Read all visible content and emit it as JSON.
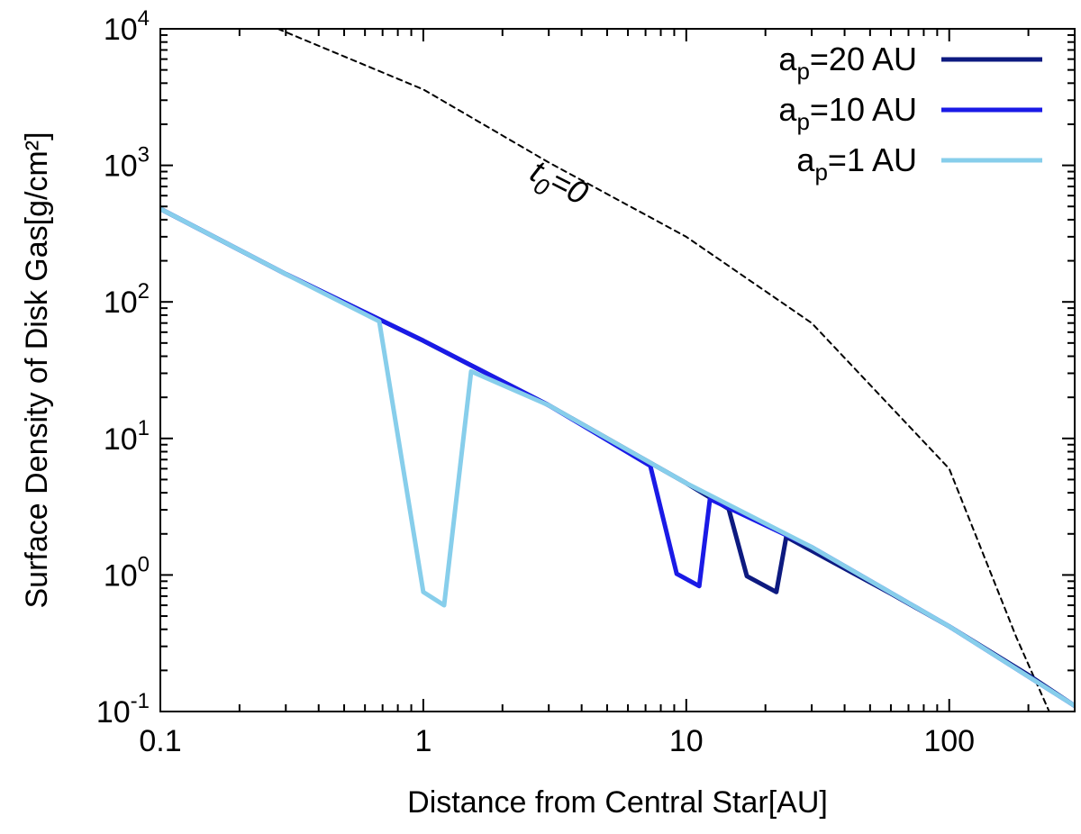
{
  "chart_data": {
    "type": "line",
    "title": "",
    "xlabel": "Distance from Central Star[AU]",
    "ylabel": "Surface Density of Disk Gas[g/cm²]",
    "xscale": "log",
    "yscale": "log",
    "xlim": [
      0.1,
      300
    ],
    "ylim": [
      0.1,
      10000
    ],
    "x_ticks": [
      {
        "value": 0.1,
        "label": "0.1"
      },
      {
        "value": 1,
        "label": "1"
      },
      {
        "value": 10,
        "label": "10"
      },
      {
        "value": 100,
        "label": "100"
      }
    ],
    "y_ticks": [
      {
        "value": 0.1,
        "base": "10",
        "exp": "-1"
      },
      {
        "value": 1,
        "base": "10",
        "exp": "0"
      },
      {
        "value": 10,
        "base": "10",
        "exp": "1"
      },
      {
        "value": 100,
        "base": "10",
        "exp": "2"
      },
      {
        "value": 1000,
        "base": "10",
        "exp": "3"
      },
      {
        "value": 10000,
        "base": "10",
        "exp": "4"
      }
    ],
    "legend_position": "top-right",
    "series": [
      {
        "name": "a_p=20 AU",
        "legend_main": "a",
        "legend_sub": "p",
        "legend_rest": "=20 AU",
        "color": "#0d1a80",
        "x": [
          0.1,
          0.3,
          1,
          3,
          10,
          14.5,
          17,
          22,
          24,
          60,
          100,
          200,
          300
        ],
        "y": [
          480,
          160,
          52,
          17.5,
          4.7,
          3.05,
          0.98,
          0.75,
          1.9,
          0.73,
          0.42,
          0.185,
          0.11
        ]
      },
      {
        "name": "a_p=10 AU",
        "legend_main": "a",
        "legend_sub": "p",
        "legend_rest": "=10 AU",
        "color": "#1a1ae6",
        "x": [
          0.1,
          0.3,
          1,
          3,
          7.3,
          9.2,
          11.2,
          12.3,
          30,
          100,
          300
        ],
        "y": [
          480,
          160,
          52,
          17.5,
          6.3,
          1.02,
          0.83,
          3.6,
          1.6,
          0.42,
          0.11
        ]
      },
      {
        "name": "a_p=1 AU",
        "legend_main": "a",
        "legend_sub": "p",
        "legend_rest": "=1 AU",
        "color": "#87ceeb",
        "x": [
          0.1,
          0.3,
          0.68,
          1.0,
          1.2,
          1.52,
          3,
          10,
          30,
          100,
          300
        ],
        "y": [
          480,
          160,
          72,
          0.75,
          0.6,
          31,
          17.5,
          4.7,
          1.6,
          0.42,
          0.11
        ]
      },
      {
        "name": "t0=0",
        "color": "#000000",
        "dashed": true,
        "x": [
          0.28,
          1,
          3,
          10,
          30,
          100,
          180,
          240
        ],
        "y": [
          10000,
          3600,
          1050,
          300,
          70,
          6,
          0.35,
          0.1
        ]
      }
    ],
    "annotation": {
      "main": "t",
      "sub": "0",
      "rest": "=0",
      "x": 2.5,
      "y": 800,
      "rotation_deg": 27
    }
  }
}
